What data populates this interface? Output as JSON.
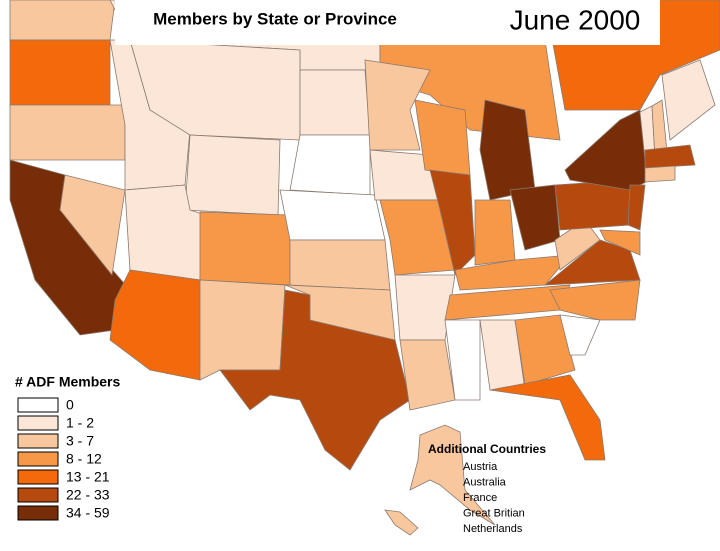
{
  "header": {
    "title": "Members by State or Province",
    "date": "June 2000"
  },
  "legend": {
    "title": "# ADF Members",
    "items": [
      {
        "label": "0",
        "color": "#ffffff"
      },
      {
        "label": "1 - 2",
        "color": "#fce6d8"
      },
      {
        "label": "3 - 7",
        "color": "#f9c79e"
      },
      {
        "label": "8 - 12",
        "color": "#f79848"
      },
      {
        "label": "13 - 21",
        "color": "#f26a0c"
      },
      {
        "label": "22 - 33",
        "color": "#b64a0e"
      },
      {
        "label": "34 - 59",
        "color": "#772e08"
      }
    ]
  },
  "additional_countries": {
    "title": "Additional Countries",
    "items": [
      "Austria",
      "Australia",
      "France",
      "Great Britian",
      "Netherlands"
    ]
  }
}
